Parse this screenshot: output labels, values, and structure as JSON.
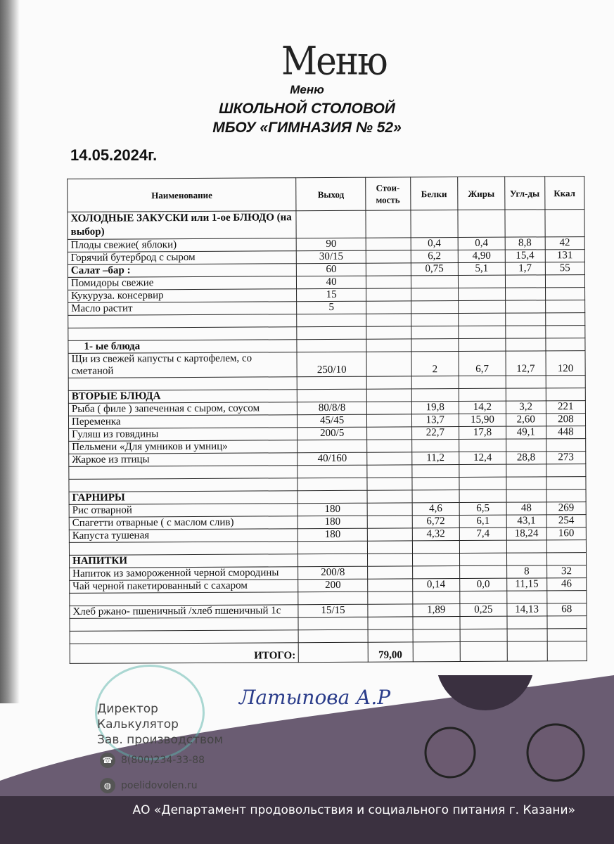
{
  "handwritten_title": "Меню",
  "title": {
    "line1": "Меню",
    "line2": "ШКОЛЬНОЙ СТОЛОВОЙ",
    "line3": "МБОУ «ГИМНАЗИЯ № 52»"
  },
  "date": "14.05.2024г.",
  "table": {
    "headers": [
      "Наименование",
      "Выход",
      "Стои-мость",
      "Белки",
      "Жиры",
      "Угл-ды",
      "Ккал"
    ],
    "rows": [
      {
        "name": "ХОЛОДНЫЕ ЗАКУСКИ или 1-ое БЛЮДО (на выбор)",
        "bold": true,
        "v": [
          "",
          "",
          "",
          "",
          "",
          ""
        ]
      },
      {
        "name": "Плоды свежие( яблоки)",
        "v": [
          "90",
          "",
          "0,4",
          "0,4",
          "8,8",
          "42"
        ]
      },
      {
        "name": "Горячий бутерброд с сыром",
        "v": [
          "30/15",
          "",
          "6,2",
          "4,90",
          "15,4",
          "131"
        ]
      },
      {
        "name": "Салат –бар :",
        "bold": true,
        "v": [
          "60",
          "",
          "0,75",
          "5,1",
          "1,7",
          "55"
        ]
      },
      {
        "name": "Помидоры свежие",
        "v": [
          "40",
          "",
          "",
          "",
          "",
          ""
        ]
      },
      {
        "name": "Кукуруза. консервир",
        "v": [
          "15",
          "",
          "",
          "",
          "",
          ""
        ]
      },
      {
        "name": "Масло растит",
        "v": [
          "5",
          "",
          "",
          "",
          "",
          ""
        ]
      },
      {
        "name": "",
        "v": [
          "",
          "",
          "",
          "",
          "",
          ""
        ]
      },
      {
        "name": "",
        "v": [
          "",
          "",
          "",
          "",
          "",
          ""
        ]
      },
      {
        "name": "1-   ые блюда",
        "bold": true,
        "indent": true,
        "v": [
          "",
          "",
          "",
          "",
          "",
          ""
        ]
      },
      {
        "name": "Щи из свежей капусты с картофелем,  со сметаной",
        "v": [
          "250/10",
          "",
          "2",
          "6,7",
          "12,7",
          "120"
        ]
      },
      {
        "name": "",
        "v": [
          "",
          "",
          "",
          "",
          "",
          ""
        ]
      },
      {
        "name": "ВТОРЫЕ БЛЮДА",
        "bold": true,
        "v": [
          "",
          "",
          "",
          "",
          "",
          ""
        ]
      },
      {
        "name": "Рыба ( филе ) запеченная с сыром, соусом",
        "v": [
          "80/8/8",
          "",
          "19,8",
          "14,2",
          "3,2",
          "221"
        ]
      },
      {
        "name": "Переменка",
        "v": [
          "45/45",
          "",
          "13,7",
          "15,90",
          "2,60",
          "208"
        ]
      },
      {
        "name": "Гуляш из говядины",
        "v": [
          "200/5",
          "",
          "22,7",
          "17,8",
          "49,1",
          "448"
        ]
      },
      {
        "name": "Пельмени  «Для умников и умниц»",
        "v": [
          "",
          "",
          "",
          "",
          "",
          ""
        ]
      },
      {
        "name": "Жаркое из птицы",
        "v": [
          "40/160",
          "",
          "11,2",
          "12,4",
          "28,8",
          "273"
        ]
      },
      {
        "name": "",
        "v": [
          "",
          "",
          "",
          "",
          "",
          ""
        ]
      },
      {
        "name": "",
        "v": [
          "",
          "",
          "",
          "",
          "",
          ""
        ]
      },
      {
        "name": "ГАРНИРЫ",
        "bold": true,
        "v": [
          "",
          "",
          "",
          "",
          "",
          ""
        ]
      },
      {
        "name": "Рис отварной",
        "v": [
          "180",
          "",
          "4,6",
          "6,5",
          "48",
          "269"
        ]
      },
      {
        "name": "Спагетти отварные ( с маслом слив)",
        "v": [
          "180",
          "",
          "6,72",
          "6,1",
          "43,1",
          "254"
        ]
      },
      {
        "name": "Капуста тушеная",
        "v": [
          "180",
          "",
          "4,32",
          "7,4",
          "18,24",
          "160"
        ]
      },
      {
        "name": "",
        "v": [
          "",
          "",
          "",
          "",
          "",
          ""
        ]
      },
      {
        "name": "НАПИТКИ",
        "bold": true,
        "v": [
          "",
          "",
          "",
          "",
          "",
          ""
        ]
      },
      {
        "name": "Напиток из замороженной черной смородины",
        "v": [
          "200/8",
          "",
          "",
          "",
          "8",
          "32"
        ]
      },
      {
        "name": "Чай черной пакетированный с сахаром",
        "v": [
          "200",
          "",
          "0,14",
          "0,0",
          "11,15",
          "46"
        ]
      },
      {
        "name": "",
        "v": [
          "",
          "",
          "",
          "",
          "",
          ""
        ]
      },
      {
        "name": "Хлеб  ржано- пшеничный /хлеб пшеничный 1с",
        "v": [
          "15/15",
          "",
          "1,89",
          "0,25",
          "14,13",
          "68"
        ]
      },
      {
        "name": "",
        "v": [
          "",
          "",
          "",
          "",
          "",
          ""
        ]
      },
      {
        "name": "",
        "v": [
          "",
          "",
          "",
          "",
          "",
          ""
        ]
      },
      {
        "name": "",
        "v": [
          "",
          "79,00",
          "",
          "",
          "",
          ""
        ]
      }
    ],
    "total_label": "ИТОГО:"
  },
  "signature": "Латыпова А.Р",
  "footer": {
    "roles": [
      "Директор",
      "Калькулятор",
      "Зав. производством"
    ],
    "phone": "8(800)234-33-88",
    "phone_icon": "phone-icon",
    "website": "poelidovolen.ru",
    "website_icon": "globe-icon",
    "organization": "АО «Департамент продовольствия и социального питания г. Казани»"
  },
  "colors": {
    "banner": "#3b3140",
    "wave": "#5a4a63"
  }
}
